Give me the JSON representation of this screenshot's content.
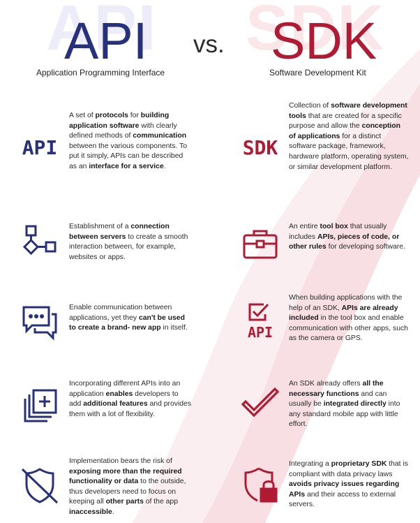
{
  "header": {
    "left_title": "API",
    "left_subtitle": "Application Programming Interface",
    "versus": "vs.",
    "right_title": "SDK",
    "right_subtitle": "Software Development Kit"
  },
  "colors": {
    "api_navy": "#27307a",
    "sdk_red": "#b01a33",
    "text": "#2b2b2b"
  },
  "rows": [
    {
      "api": {
        "icon": "api-text-icon",
        "icon_label": "API",
        "segments": [
          {
            "t": "A set of ",
            "b": false
          },
          {
            "t": "protocols",
            "b": true
          },
          {
            "t": " for ",
            "b": false
          },
          {
            "t": "building application software",
            "b": true
          },
          {
            "t": " with clearly defined methods of ",
            "b": false
          },
          {
            "t": "communication",
            "b": true
          },
          {
            "t": " between the various components. To put it simply, APIs can be described as an ",
            "b": false
          },
          {
            "t": "interface for a service",
            "b": true
          },
          {
            "t": ".",
            "b": false
          }
        ]
      },
      "sdk": {
        "icon": "sdk-text-icon",
        "icon_label": "SDK",
        "segments": [
          {
            "t": "Collection of ",
            "b": false
          },
          {
            "t": "software development tools",
            "b": true
          },
          {
            "t": " that are created for a specific purpose and allow the ",
            "b": false
          },
          {
            "t": "conception of applications",
            "b": true
          },
          {
            "t": " for a distinct software package, framework, hardware platform, operating system, or similar development platform.",
            "b": false
          }
        ]
      }
    },
    {
      "api": {
        "icon": "network-connection-icon",
        "segments": [
          {
            "t": "Establishment of a ",
            "b": false
          },
          {
            "t": "connection between servers",
            "b": true
          },
          {
            "t": " to create a smooth interaction between, for example, websites or apps.",
            "b": false
          }
        ]
      },
      "sdk": {
        "icon": "toolbox-icon",
        "segments": [
          {
            "t": "An entire ",
            "b": false
          },
          {
            "t": "tool box",
            "b": true
          },
          {
            "t": " that usually includes ",
            "b": false
          },
          {
            "t": "APIs, pieces of code, or other rules",
            "b": true
          },
          {
            "t": " for developing software.",
            "b": false
          }
        ]
      }
    },
    {
      "api": {
        "icon": "chat-bubbles-icon",
        "segments": [
          {
            "t": "Enable communication between applications, yet they ",
            "b": false
          },
          {
            "t": "can't be used to create a brand- new app",
            "b": true
          },
          {
            "t": " in itself.",
            "b": false
          }
        ]
      },
      "sdk": {
        "icon": "checkbox-api-icon",
        "icon_label": "API",
        "segments": [
          {
            "t": "When building applications with the help of an SDK, ",
            "b": false
          },
          {
            "t": "APIs are already included",
            "b": true
          },
          {
            "t": " in the tool box and enable communication with other apps, such as the camera or GPS.",
            "b": false
          }
        ]
      }
    },
    {
      "api": {
        "icon": "add-layers-icon",
        "segments": [
          {
            "t": "Incorporating different APIs into an application ",
            "b": false
          },
          {
            "t": "enables",
            "b": true
          },
          {
            "t": " developers to add ",
            "b": false
          },
          {
            "t": "additional features",
            "b": true
          },
          {
            "t": " and provides them with a lot of flexibility.",
            "b": false
          }
        ]
      },
      "sdk": {
        "icon": "checkmark-icon",
        "segments": [
          {
            "t": "An SDK already offers ",
            "b": false
          },
          {
            "t": "all the necessary functions",
            "b": true
          },
          {
            "t": " and can usually be ",
            "b": false
          },
          {
            "t": "integrated directly",
            "b": true
          },
          {
            "t": " into any standard mobile app with little effort.",
            "b": false
          }
        ]
      }
    },
    {
      "api": {
        "icon": "shield-off-icon",
        "segments": [
          {
            "t": "Implementation bears the risk of ",
            "b": false
          },
          {
            "t": "exposing more than the required functionality or data",
            "b": true
          },
          {
            "t": " to the outside, thus developers need to focus on keeping all ",
            "b": false
          },
          {
            "t": "other parts",
            "b": true
          },
          {
            "t": " of the app ",
            "b": false
          },
          {
            "t": "inaccessible",
            "b": true
          },
          {
            "t": ".",
            "b": false
          }
        ]
      },
      "sdk": {
        "icon": "shield-lock-icon",
        "segments": [
          {
            "t": "Integrating a ",
            "b": false
          },
          {
            "t": "proprietary SDK",
            "b": true
          },
          {
            "t": " that is compliant with data privacy laws ",
            "b": false
          },
          {
            "t": "avoids privacy issues regarding APIs",
            "b": true
          },
          {
            "t": " and their access to external servers.",
            "b": false
          }
        ]
      }
    }
  ]
}
